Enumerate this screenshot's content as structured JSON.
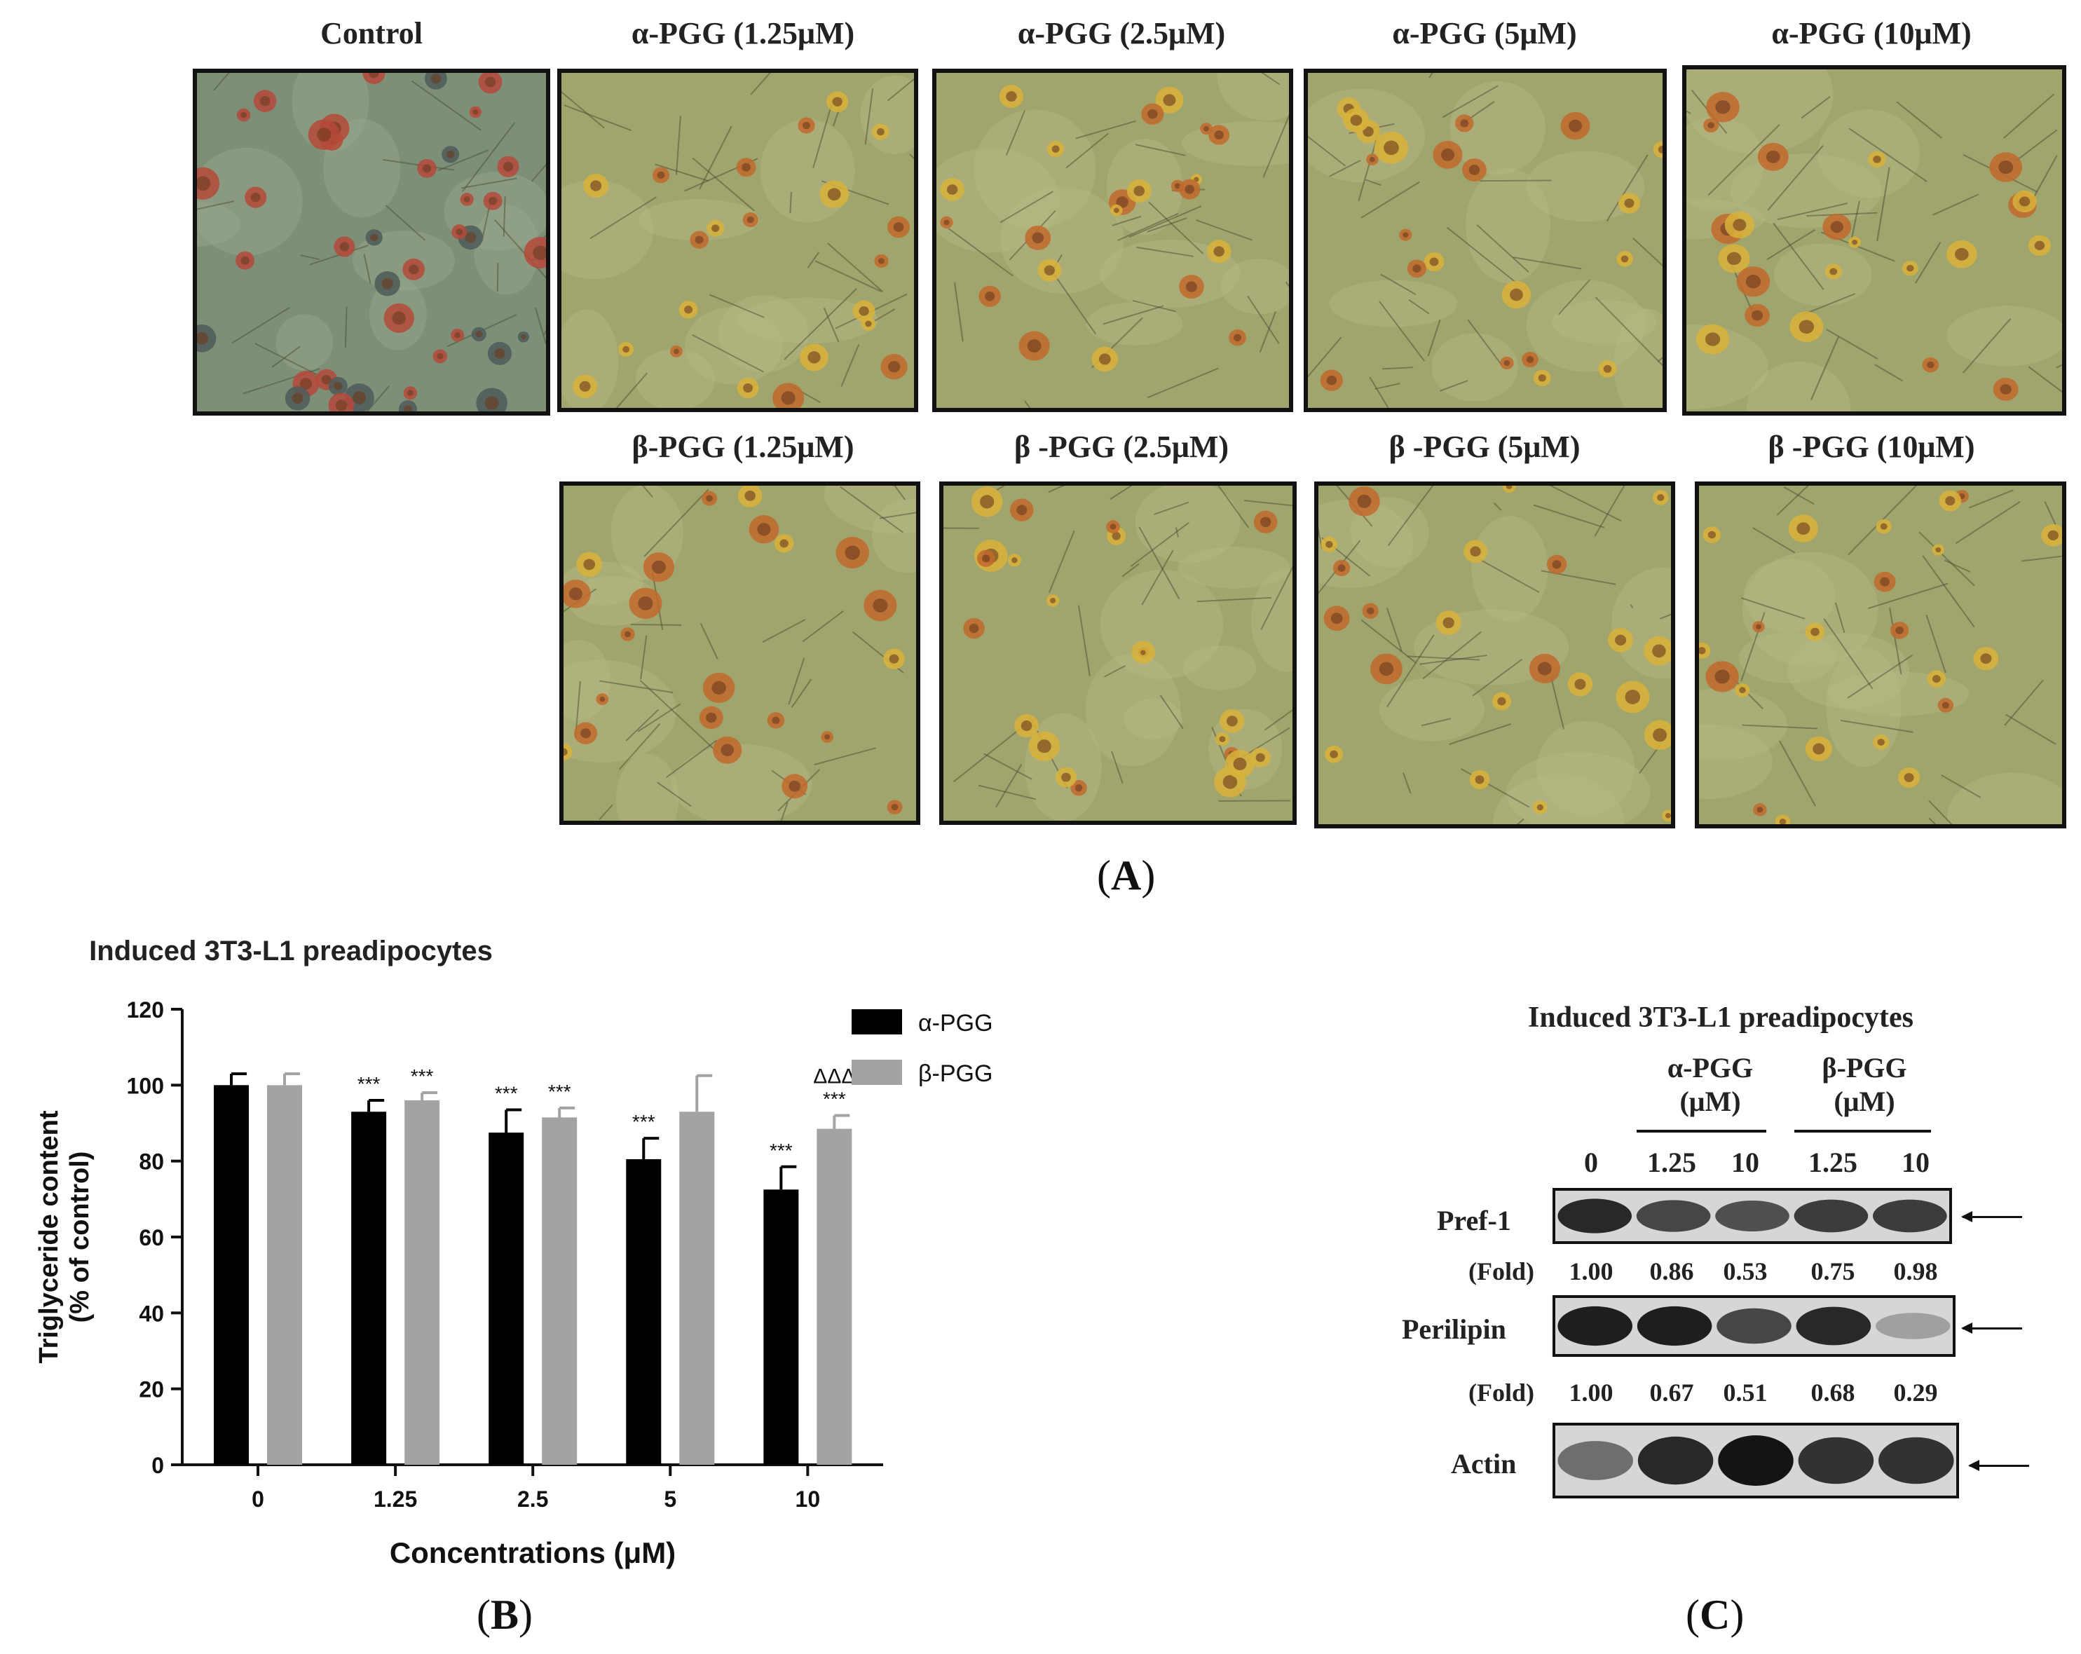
{
  "panelA": {
    "tiles": [
      {
        "label": "Control"
      },
      {
        "label": "α-PGG (1.25μM)"
      },
      {
        "label": "α-PGG (2.5μM)"
      },
      {
        "label": "α-PGG (5μM)"
      },
      {
        "label": "α-PGG (10μM)"
      },
      {
        "label": "β-PGG (1.25μM)"
      },
      {
        "label": "β -PGG (2.5μM)"
      },
      {
        "label": "β -PGG (5μM)"
      },
      {
        "label": "β -PGG (10μM)"
      }
    ],
    "caption": "A"
  },
  "panelB": {
    "caption": "B",
    "chart_data": {
      "type": "bar",
      "title": "Induced 3T3-L1 preadipocytes",
      "xlabel": "Concentrations (μM)",
      "ylabel_lines": [
        "Triglyceride content",
        "(% of control)"
      ],
      "ylim": [
        0,
        120
      ],
      "yticks": [
        0,
        20,
        40,
        60,
        80,
        100,
        120
      ],
      "categories": [
        "0",
        "1.25",
        "2.5",
        "5",
        "10"
      ],
      "series": [
        {
          "name": "α-PGG",
          "color": "#000000",
          "values": [
            100,
            93,
            87.5,
            80.5,
            72.5
          ],
          "errors": [
            3,
            3,
            6,
            5.5,
            6
          ],
          "marks": [
            "",
            "***",
            "***",
            "***",
            "***"
          ]
        },
        {
          "name": "β-PGG",
          "color": "#a3a3a3",
          "values": [
            100,
            96,
            91.5,
            93,
            88.5
          ],
          "errors": [
            3,
            2,
            2.5,
            9.5,
            3.5
          ],
          "marks": [
            "",
            "***",
            "***",
            "",
            "***"
          ]
        }
      ],
      "extra_marks": [
        {
          "category": "10",
          "series": "β-PGG",
          "text": "ΔΔΔ"
        }
      ],
      "legend_position": "top-right",
      "grid": false
    }
  },
  "panelC": {
    "caption": "C",
    "title": "Induced 3T3-L1 preadipocytes",
    "group_alpha": "α-PGG",
    "group_beta": "β-PGG",
    "unit": "(μM)",
    "lanes": [
      "0",
      "1.25",
      "10",
      "1.25",
      "10"
    ],
    "fold_label": "(Fold)",
    "blots": [
      {
        "name": "Pref-1",
        "intensities": [
          0.9,
          0.75,
          0.7,
          0.8,
          0.8
        ],
        "folds": [
          "1.00",
          "0.86",
          "0.53",
          "0.75",
          "0.98"
        ]
      },
      {
        "name": "Perilipin",
        "intensities": [
          0.95,
          0.95,
          0.75,
          0.9,
          0.3
        ],
        "folds": [
          "1.00",
          "0.67",
          "0.51",
          "0.68",
          "0.29"
        ]
      },
      {
        "name": "Actin",
        "intensities": [
          0.55,
          0.9,
          1.0,
          0.85,
          0.85
        ],
        "folds": []
      }
    ]
  }
}
